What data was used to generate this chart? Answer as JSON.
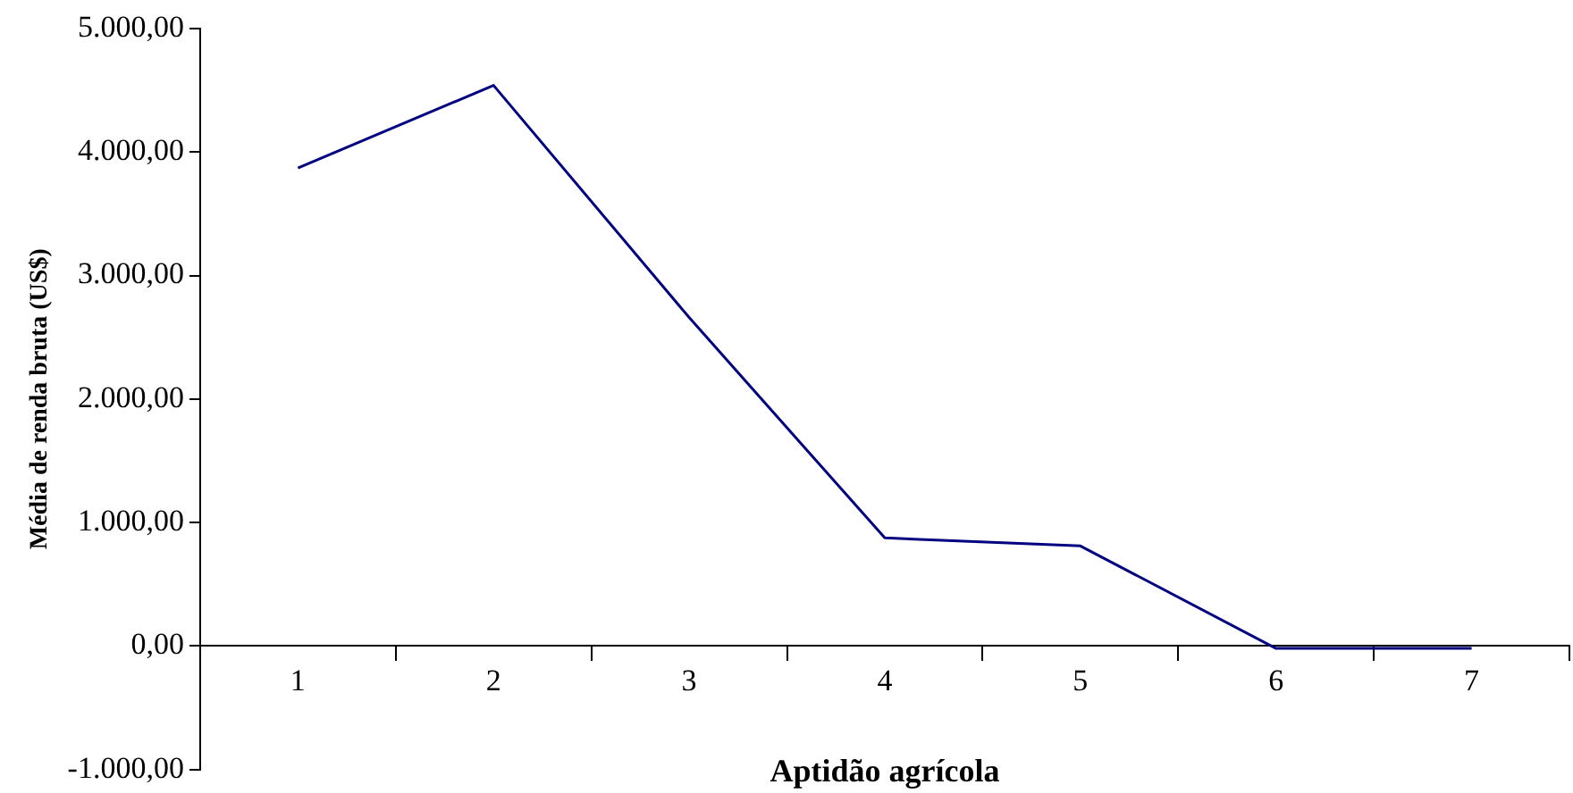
{
  "chart_data": {
    "type": "line",
    "xlabel": "Aptidão agrícola",
    "ylabel": "Média de renda bruta (US$)",
    "categories": [
      "1",
      "2",
      "3",
      "4",
      "5",
      "6",
      "7"
    ],
    "series": [
      {
        "color": "#000080",
        "values": [
          3870,
          4540,
          2660,
          875,
          810,
          -20,
          -20
        ]
      }
    ],
    "ylim": [
      -1000,
      5000
    ],
    "yticks": [
      {
        "value": -1000,
        "label": "-1.000,00"
      },
      {
        "value": 0,
        "label": "0,00"
      },
      {
        "value": 1000,
        "label": "1.000,00"
      },
      {
        "value": 2000,
        "label": "2.000,00"
      },
      {
        "value": 3000,
        "label": "3.000,00"
      },
      {
        "value": 4000,
        "label": "4.000,00"
      },
      {
        "value": 5000,
        "label": "5.000,00"
      }
    ],
    "grid": false,
    "legend": false,
    "marker": "none",
    "line_style": "solid"
  }
}
